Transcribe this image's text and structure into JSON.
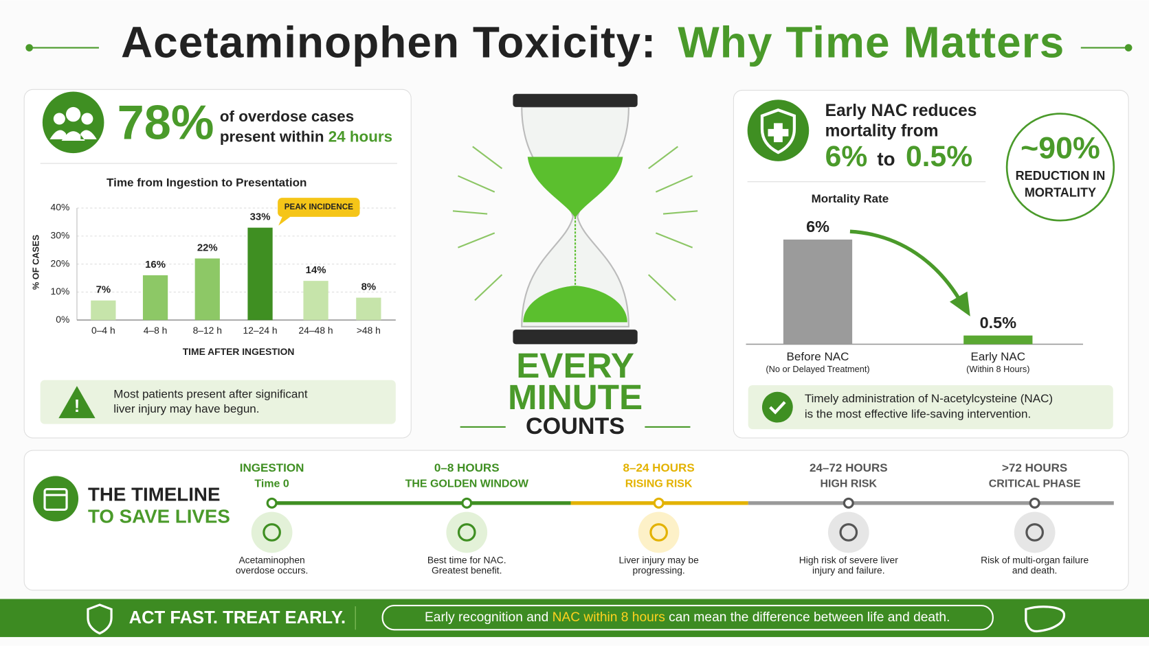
{
  "title": {
    "part1": "Acetaminophen Toxicity:",
    "part2": "Why Time Matters"
  },
  "stat": {
    "value": "78%",
    "line1": "of overdose cases",
    "line2": "present within ",
    "highlight": "24 hours"
  },
  "chart_data": [
    {
      "type": "bar",
      "title": "Time from Ingestion to Presentation",
      "x_label": "TIME AFTER INGESTION",
      "y_label": "% OF CASES",
      "categories": [
        "0–4 h",
        "4–8 h",
        "8–12 h",
        "12–24 h",
        "24–48 h",
        ">48 h"
      ],
      "values": [
        7,
        16,
        22,
        33,
        14,
        8
      ],
      "value_labels": [
        "7%",
        "16%",
        "22%",
        "33%",
        "14%",
        "8%"
      ],
      "colors": [
        "#c6e4aa",
        "#8dc866",
        "#8dc866",
        "#3f8f22",
        "#c6e4aa",
        "#c6e4aa"
      ],
      "ylim": [
        0,
        40
      ],
      "yticks": [
        {
          "value": 0,
          "label": "0%"
        },
        {
          "value": 10,
          "label": "10%"
        },
        {
          "value": 20,
          "label": "20%"
        },
        {
          "value": 30,
          "label": "30%"
        },
        {
          "value": 40,
          "label": "40%"
        }
      ],
      "grid": true,
      "annotation": "PEAK INCIDENCE"
    },
    {
      "type": "bar",
      "title": "Mortality Rate",
      "categories": [
        "Before NAC",
        "Early NAC"
      ],
      "subcategories": [
        "(No or Delayed Treatment)",
        "(Within 8 Hours)"
      ],
      "values": [
        6,
        0.5
      ],
      "value_labels": [
        "6%",
        "0.5%"
      ],
      "colors": [
        "#9b9b9b",
        "#5aa832"
      ],
      "ylim": [
        0,
        6
      ]
    }
  ],
  "warning": {
    "line1": "Most patients present after significant",
    "line2": "liver injury may have begun."
  },
  "hourglass": {
    "line1": "EVERY",
    "line2": "MINUTE",
    "line3": "COUNTS"
  },
  "nac": {
    "line1": "Early NAC reduces",
    "line2": "mortality from",
    "from": "6%",
    "to": "to",
    "target": "0.5%",
    "reduction": "~90%",
    "reduction_line1": "REDUCTION IN",
    "reduction_line2": "MORTALITY"
  },
  "note": {
    "line1": "Timely administration of N-acetylcysteine (NAC)",
    "line2": "is the most effective life-saving intervention."
  },
  "timeline": {
    "title1": "THE TIMELINE",
    "title2": "TO SAVE LIVES",
    "stages": [
      {
        "title": "INGESTION",
        "subtitle": "Time 0",
        "desc1": "Acetaminophen",
        "desc2": "overdose occurs."
      },
      {
        "title": "0–8 HOURS",
        "subtitle": "THE GOLDEN WINDOW",
        "desc1": "Best time for NAC.",
        "desc2": "Greatest benefit."
      },
      {
        "title": "8–24 HOURS",
        "subtitle": "RISING RISK",
        "desc1": "Liver injury may be",
        "desc2": "progressing."
      },
      {
        "title": "24–72 HOURS",
        "subtitle": "HIGH RISK",
        "desc1": "High risk of severe liver",
        "desc2": "injury and failure."
      },
      {
        "title": ">72 HOURS",
        "subtitle": "CRITICAL PHASE",
        "desc1": "Risk of multi-organ failure",
        "desc2": "and death."
      }
    ]
  },
  "footer": {
    "slogan": "ACT FAST. TREAT EARLY.",
    "message1": "Early recognition and ",
    "message_highlight": "NAC within 8 hours",
    "message2": " can mean the difference between life and death."
  }
}
